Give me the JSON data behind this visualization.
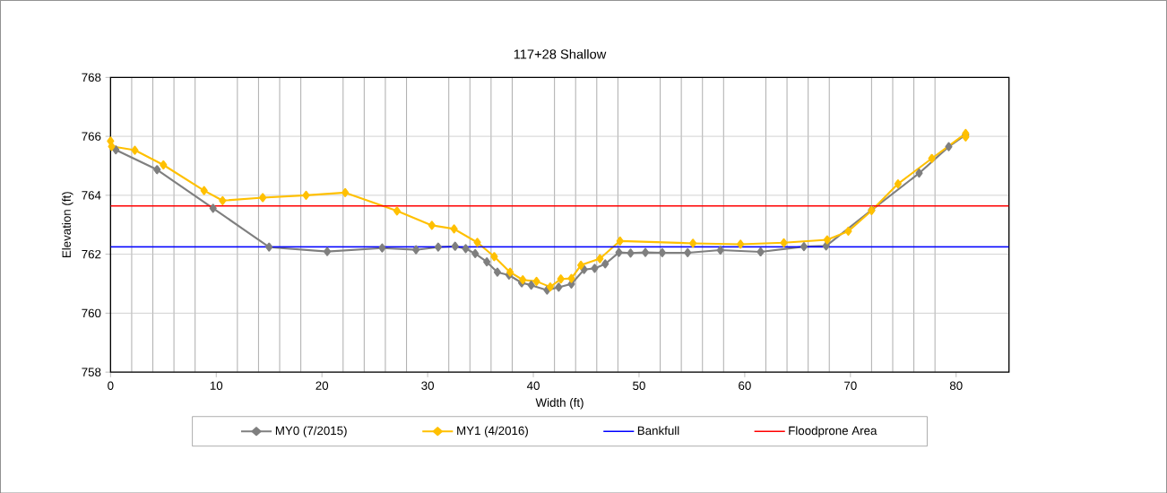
{
  "chart_data": {
    "type": "line",
    "title": "117+28 Shallow",
    "xlabel": "Width (ft)",
    "ylabel": "Elevation (ft)",
    "xlim": [
      0,
      85
    ],
    "ylim": [
      758,
      768
    ],
    "xticks": [
      0,
      10,
      20,
      30,
      40,
      50,
      60,
      70,
      80
    ],
    "yticks": [
      758,
      760,
      762,
      764,
      766,
      768
    ],
    "grid": true,
    "legend": "bottom",
    "marker": "diamond",
    "line_style": "solid",
    "series": [
      {
        "name": "MY0 (7/2015)",
        "color": "#7f7f7f",
        "x": [
          0.5,
          4.4,
          9.7,
          15.0,
          20.5,
          25.7,
          28.9,
          31.0,
          32.6,
          33.6,
          34.5,
          35.6,
          36.6,
          37.7,
          38.9,
          39.8,
          41.3,
          42.4,
          43.6,
          44.8,
          45.8,
          46.8,
          48.1,
          49.2,
          50.6,
          52.2,
          54.6,
          57.7,
          61.5,
          65.6,
          67.7,
          72.0,
          76.5,
          79.3,
          80.9
        ],
        "values": [
          765.54,
          764.87,
          763.56,
          762.24,
          762.09,
          762.21,
          762.15,
          762.24,
          762.27,
          762.19,
          762.02,
          761.74,
          761.39,
          761.29,
          761.03,
          760.95,
          760.78,
          760.88,
          760.99,
          761.48,
          761.52,
          761.67,
          762.06,
          762.04,
          762.06,
          762.05,
          762.05,
          762.14,
          762.08,
          762.26,
          762.28,
          763.5,
          764.75,
          765.65,
          766.05
        ]
      },
      {
        "name": "MY1 (4/2016)",
        "color": "#ffc000",
        "x": [
          0,
          0.1,
          2.3,
          5.0,
          8.85,
          10.6,
          14.4,
          18.5,
          22.2,
          27.1,
          30.4,
          32.5,
          34.7,
          36.3,
          37.8,
          39.0,
          40.3,
          41.6,
          42.6,
          43.6,
          44.5,
          46.3,
          48.2,
          55.1,
          59.6,
          63.7,
          67.8,
          69.8,
          72.0,
          74.5,
          77.7,
          80.9,
          80.9
        ],
        "values": [
          765.84,
          765.66,
          765.53,
          765.03,
          764.16,
          763.82,
          763.92,
          764.0,
          764.09,
          763.47,
          762.98,
          762.86,
          762.4,
          761.92,
          761.39,
          761.13,
          761.08,
          760.89,
          761.16,
          761.18,
          761.63,
          761.85,
          762.45,
          762.37,
          762.34,
          762.39,
          762.49,
          762.78,
          763.48,
          764.39,
          765.25,
          766.1,
          765.98
        ]
      }
    ],
    "ref_lines": [
      {
        "axis": "y",
        "value": 762.25,
        "label": "Bankfull",
        "color": "#0000ff"
      },
      {
        "axis": "y",
        "value": 763.64,
        "label": "Floodprone Area",
        "color": "#ff0000"
      }
    ]
  }
}
